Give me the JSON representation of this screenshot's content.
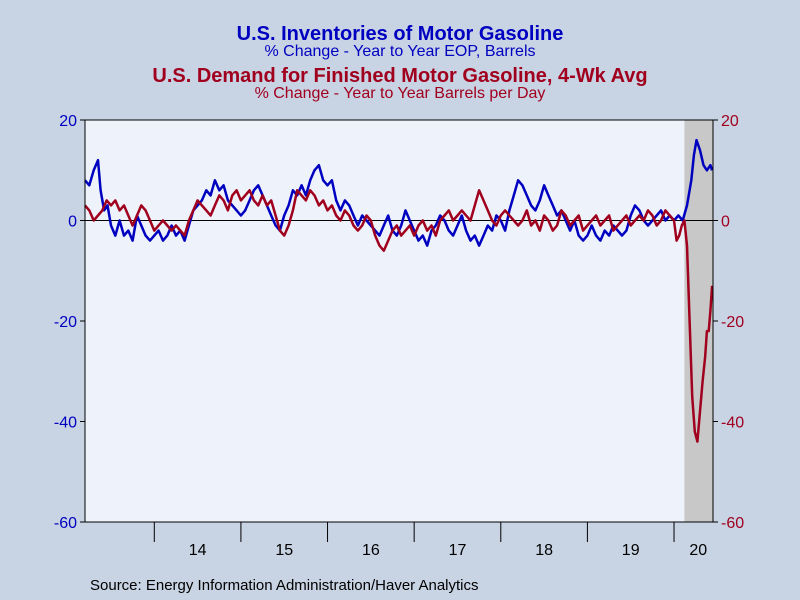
{
  "titles": {
    "title1": "U.S. Inventories  of Motor Gasoline",
    "subtitle1": "% Change - Year to Year    EOP,  Barrels",
    "title2": "U.S. Demand for Finished Motor Gasoline, 4-Wk Avg",
    "subtitle2": "% Change - Year to Year     Barrels per Day"
  },
  "source": "Source:  Energy Information Administration/Haver Analytics",
  "colors": {
    "inventories": "#0000c0",
    "demand": "#a0001e",
    "plot_bg": "#eef3fb",
    "page_bg": "#c8d3e3",
    "shade": "#c8c8c8"
  },
  "chart_data": {
    "type": "line",
    "x_ticks": [
      "14",
      "15",
      "16",
      "17",
      "18",
      "19",
      "20"
    ],
    "y_left": {
      "ticks": [
        "20",
        "0",
        "-20",
        "-40",
        "-60"
      ],
      "range": [
        -60,
        20
      ]
    },
    "y_right": {
      "ticks": [
        "20",
        "0",
        "-20",
        "-40",
        "-60"
      ],
      "range": [
        -60,
        20
      ]
    },
    "x_range": [
      2013.2,
      2020.45
    ],
    "shaded_region": [
      2020.12,
      2020.45
    ],
    "series": [
      {
        "name": "U.S. Inventories  of Motor Gasoline",
        "axis": "left",
        "points": [
          [
            2013.2,
            8
          ],
          [
            2013.25,
            7
          ],
          [
            2013.3,
            10
          ],
          [
            2013.35,
            12
          ],
          [
            2013.38,
            6
          ],
          [
            2013.42,
            2
          ],
          [
            2013.46,
            3
          ],
          [
            2013.5,
            -1
          ],
          [
            2013.55,
            -3
          ],
          [
            2013.6,
            0
          ],
          [
            2013.65,
            -3
          ],
          [
            2013.7,
            -2
          ],
          [
            2013.75,
            -4
          ],
          [
            2013.8,
            1
          ],
          [
            2013.85,
            -1
          ],
          [
            2013.9,
            -3
          ],
          [
            2013.95,
            -4
          ],
          [
            2014.0,
            -3
          ],
          [
            2014.05,
            -2
          ],
          [
            2014.1,
            -4
          ],
          [
            2014.15,
            -3
          ],
          [
            2014.2,
            -1
          ],
          [
            2014.25,
            -3
          ],
          [
            2014.3,
            -2
          ],
          [
            2014.35,
            -4
          ],
          [
            2014.4,
            -1
          ],
          [
            2014.45,
            2
          ],
          [
            2014.5,
            3
          ],
          [
            2014.55,
            4
          ],
          [
            2014.6,
            6
          ],
          [
            2014.65,
            5
          ],
          [
            2014.7,
            8
          ],
          [
            2014.75,
            6
          ],
          [
            2014.8,
            7
          ],
          [
            2014.85,
            4
          ],
          [
            2014.9,
            3
          ],
          [
            2014.95,
            2
          ],
          [
            2015.0,
            1
          ],
          [
            2015.05,
            2
          ],
          [
            2015.1,
            4
          ],
          [
            2015.15,
            6
          ],
          [
            2015.2,
            7
          ],
          [
            2015.25,
            5
          ],
          [
            2015.3,
            3
          ],
          [
            2015.35,
            1
          ],
          [
            2015.4,
            -1
          ],
          [
            2015.45,
            -2
          ],
          [
            2015.5,
            1
          ],
          [
            2015.55,
            3
          ],
          [
            2015.6,
            6
          ],
          [
            2015.65,
            5
          ],
          [
            2015.7,
            7
          ],
          [
            2015.75,
            5
          ],
          [
            2015.8,
            8
          ],
          [
            2015.85,
            10
          ],
          [
            2015.9,
            11
          ],
          [
            2015.95,
            8
          ],
          [
            2016.0,
            7
          ],
          [
            2016.05,
            8
          ],
          [
            2016.1,
            4
          ],
          [
            2016.15,
            2
          ],
          [
            2016.2,
            4
          ],
          [
            2016.25,
            3
          ],
          [
            2016.3,
            1
          ],
          [
            2016.35,
            -1
          ],
          [
            2016.4,
            1
          ],
          [
            2016.45,
            0
          ],
          [
            2016.5,
            -1
          ],
          [
            2016.55,
            -2
          ],
          [
            2016.6,
            -3
          ],
          [
            2016.65,
            -1
          ],
          [
            2016.7,
            1
          ],
          [
            2016.75,
            -2
          ],
          [
            2016.8,
            -3
          ],
          [
            2016.85,
            -1
          ],
          [
            2016.9,
            2
          ],
          [
            2016.95,
            0
          ],
          [
            2017.0,
            -2
          ],
          [
            2017.05,
            -4
          ],
          [
            2017.1,
            -3
          ],
          [
            2017.15,
            -5
          ],
          [
            2017.2,
            -2
          ],
          [
            2017.25,
            -1
          ],
          [
            2017.3,
            1
          ],
          [
            2017.35,
            0
          ],
          [
            2017.4,
            -2
          ],
          [
            2017.45,
            -3
          ],
          [
            2017.5,
            -1
          ],
          [
            2017.55,
            1
          ],
          [
            2017.6,
            -2
          ],
          [
            2017.65,
            -4
          ],
          [
            2017.7,
            -3
          ],
          [
            2017.75,
            -5
          ],
          [
            2017.8,
            -3
          ],
          [
            2017.85,
            -1
          ],
          [
            2017.9,
            -2
          ],
          [
            2017.95,
            1
          ],
          [
            2018.0,
            0
          ],
          [
            2018.05,
            -2
          ],
          [
            2018.1,
            2
          ],
          [
            2018.15,
            5
          ],
          [
            2018.2,
            8
          ],
          [
            2018.25,
            7
          ],
          [
            2018.3,
            5
          ],
          [
            2018.35,
            3
          ],
          [
            2018.4,
            2
          ],
          [
            2018.45,
            4
          ],
          [
            2018.5,
            7
          ],
          [
            2018.55,
            5
          ],
          [
            2018.6,
            3
          ],
          [
            2018.65,
            1
          ],
          [
            2018.7,
            2
          ],
          [
            2018.75,
            0
          ],
          [
            2018.8,
            -2
          ],
          [
            2018.85,
            0
          ],
          [
            2018.9,
            -3
          ],
          [
            2018.95,
            -4
          ],
          [
            2019.0,
            -3
          ],
          [
            2019.05,
            -1
          ],
          [
            2019.1,
            -3
          ],
          [
            2019.15,
            -4
          ],
          [
            2019.2,
            -2
          ],
          [
            2019.25,
            -3
          ],
          [
            2019.3,
            -1
          ],
          [
            2019.35,
            -2
          ],
          [
            2019.4,
            -3
          ],
          [
            2019.45,
            -2
          ],
          [
            2019.5,
            1
          ],
          [
            2019.55,
            3
          ],
          [
            2019.6,
            2
          ],
          [
            2019.65,
            0
          ],
          [
            2019.7,
            -1
          ],
          [
            2019.75,
            0
          ],
          [
            2019.8,
            1
          ],
          [
            2019.85,
            2
          ],
          [
            2019.9,
            0
          ],
          [
            2019.95,
            1
          ],
          [
            2020.0,
            0
          ],
          [
            2020.05,
            1
          ],
          [
            2020.1,
            0
          ],
          [
            2020.15,
            3
          ],
          [
            2020.2,
            8
          ],
          [
            2020.23,
            13
          ],
          [
            2020.26,
            16
          ],
          [
            2020.3,
            14
          ],
          [
            2020.34,
            11
          ],
          [
            2020.38,
            10
          ],
          [
            2020.42,
            11
          ],
          [
            2020.44,
            10
          ]
        ]
      },
      {
        "name": "U.S. Demand for Finished Motor Gasoline, 4-Wk Avg",
        "axis": "right",
        "points": [
          [
            2013.2,
            3
          ],
          [
            2013.25,
            2
          ],
          [
            2013.3,
            0
          ],
          [
            2013.35,
            1
          ],
          [
            2013.4,
            2
          ],
          [
            2013.45,
            4
          ],
          [
            2013.5,
            3
          ],
          [
            2013.55,
            4
          ],
          [
            2013.6,
            2
          ],
          [
            2013.65,
            3
          ],
          [
            2013.7,
            1
          ],
          [
            2013.75,
            -1
          ],
          [
            2013.8,
            1
          ],
          [
            2013.85,
            3
          ],
          [
            2013.9,
            2
          ],
          [
            2013.95,
            0
          ],
          [
            2014.0,
            -2
          ],
          [
            2014.05,
            -1
          ],
          [
            2014.1,
            0
          ],
          [
            2014.15,
            -1
          ],
          [
            2014.2,
            -2
          ],
          [
            2014.25,
            -1
          ],
          [
            2014.3,
            -2
          ],
          [
            2014.35,
            -3
          ],
          [
            2014.4,
            0
          ],
          [
            2014.45,
            2
          ],
          [
            2014.5,
            4
          ],
          [
            2014.55,
            3
          ],
          [
            2014.6,
            2
          ],
          [
            2014.65,
            1
          ],
          [
            2014.7,
            3
          ],
          [
            2014.75,
            5
          ],
          [
            2014.8,
            4
          ],
          [
            2014.85,
            2
          ],
          [
            2014.9,
            5
          ],
          [
            2014.95,
            6
          ],
          [
            2015.0,
            4
          ],
          [
            2015.05,
            5
          ],
          [
            2015.1,
            6
          ],
          [
            2015.15,
            4
          ],
          [
            2015.2,
            3
          ],
          [
            2015.25,
            5
          ],
          [
            2015.3,
            3
          ],
          [
            2015.35,
            4
          ],
          [
            2015.4,
            1
          ],
          [
            2015.45,
            -2
          ],
          [
            2015.5,
            -3
          ],
          [
            2015.55,
            -1
          ],
          [
            2015.6,
            2
          ],
          [
            2015.65,
            6
          ],
          [
            2015.7,
            5
          ],
          [
            2015.75,
            4
          ],
          [
            2015.8,
            6
          ],
          [
            2015.85,
            5
          ],
          [
            2015.9,
            3
          ],
          [
            2015.95,
            4
          ],
          [
            2016.0,
            2
          ],
          [
            2016.05,
            3
          ],
          [
            2016.1,
            1
          ],
          [
            2016.15,
            0
          ],
          [
            2016.2,
            2
          ],
          [
            2016.25,
            1
          ],
          [
            2016.3,
            -1
          ],
          [
            2016.35,
            -2
          ],
          [
            2016.4,
            -1
          ],
          [
            2016.45,
            1
          ],
          [
            2016.5,
            0
          ],
          [
            2016.55,
            -3
          ],
          [
            2016.6,
            -5
          ],
          [
            2016.65,
            -6
          ],
          [
            2016.7,
            -4
          ],
          [
            2016.75,
            -2
          ],
          [
            2016.8,
            -1
          ],
          [
            2016.85,
            -3
          ],
          [
            2016.9,
            -2
          ],
          [
            2016.95,
            -1
          ],
          [
            2017.0,
            -3
          ],
          [
            2017.05,
            -1
          ],
          [
            2017.1,
            0
          ],
          [
            2017.15,
            -2
          ],
          [
            2017.2,
            -1
          ],
          [
            2017.25,
            -3
          ],
          [
            2017.3,
            0
          ],
          [
            2017.35,
            1
          ],
          [
            2017.4,
            2
          ],
          [
            2017.45,
            0
          ],
          [
            2017.5,
            1
          ],
          [
            2017.55,
            2
          ],
          [
            2017.6,
            1
          ],
          [
            2017.65,
            0
          ],
          [
            2017.7,
            3
          ],
          [
            2017.75,
            6
          ],
          [
            2017.8,
            4
          ],
          [
            2017.85,
            2
          ],
          [
            2017.9,
            0
          ],
          [
            2017.95,
            -1
          ],
          [
            2018.0,
            1
          ],
          [
            2018.05,
            2
          ],
          [
            2018.1,
            1
          ],
          [
            2018.15,
            0
          ],
          [
            2018.2,
            -1
          ],
          [
            2018.25,
            0
          ],
          [
            2018.3,
            2
          ],
          [
            2018.35,
            -1
          ],
          [
            2018.4,
            0
          ],
          [
            2018.45,
            -2
          ],
          [
            2018.5,
            1
          ],
          [
            2018.55,
            0
          ],
          [
            2018.6,
            -2
          ],
          [
            2018.65,
            -1
          ],
          [
            2018.7,
            2
          ],
          [
            2018.75,
            1
          ],
          [
            2018.8,
            -1
          ],
          [
            2018.85,
            0
          ],
          [
            2018.9,
            1
          ],
          [
            2018.95,
            -2
          ],
          [
            2019.0,
            -1
          ],
          [
            2019.05,
            0
          ],
          [
            2019.1,
            1
          ],
          [
            2019.15,
            -1
          ],
          [
            2019.2,
            0
          ],
          [
            2019.25,
            1
          ],
          [
            2019.3,
            -2
          ],
          [
            2019.35,
            -1
          ],
          [
            2019.4,
            0
          ],
          [
            2019.45,
            1
          ],
          [
            2019.5,
            -1
          ],
          [
            2019.55,
            0
          ],
          [
            2019.6,
            1
          ],
          [
            2019.65,
            0
          ],
          [
            2019.7,
            2
          ],
          [
            2019.75,
            1
          ],
          [
            2019.8,
            -1
          ],
          [
            2019.85,
            0
          ],
          [
            2019.9,
            2
          ],
          [
            2019.95,
            1
          ],
          [
            2020.0,
            0
          ],
          [
            2020.03,
            -4
          ],
          [
            2020.06,
            -3
          ],
          [
            2020.09,
            -1
          ],
          [
            2020.12,
            0
          ],
          [
            2020.15,
            -5
          ],
          [
            2020.18,
            -20
          ],
          [
            2020.21,
            -35
          ],
          [
            2020.24,
            -42
          ],
          [
            2020.27,
            -44
          ],
          [
            2020.3,
            -38
          ],
          [
            2020.33,
            -32
          ],
          [
            2020.36,
            -27
          ],
          [
            2020.38,
            -22
          ],
          [
            2020.4,
            -22
          ],
          [
            2020.42,
            -18
          ],
          [
            2020.44,
            -13
          ]
        ]
      }
    ]
  }
}
